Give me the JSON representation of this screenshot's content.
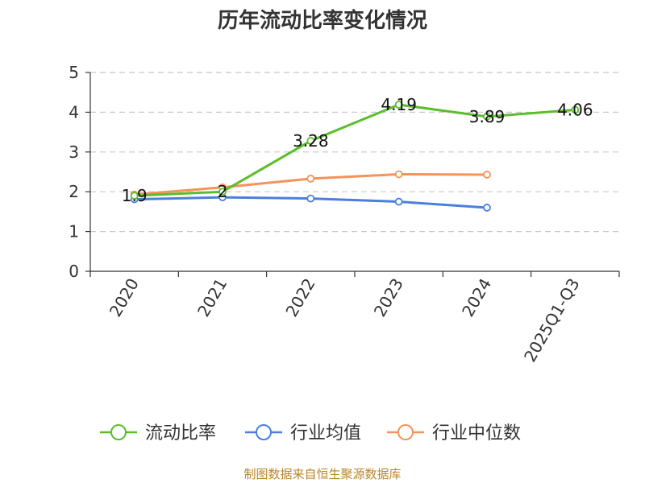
{
  "chart_data": {
    "type": "line",
    "title": "历年流动比率变化情况",
    "categories": [
      "2020",
      "2021",
      "2022",
      "2023",
      "2024",
      "2025Q1-Q3"
    ],
    "ylim": [
      0,
      5
    ],
    "yticks": [
      "0",
      "1",
      "2",
      "3",
      "4",
      "5"
    ],
    "grid": true,
    "legend_position": "bottom",
    "series": [
      {
        "name": "流动比率",
        "color": "#5bbd2b",
        "values": [
          1.9,
          2,
          3.28,
          4.19,
          3.89,
          4.06
        ],
        "labels": [
          "1.9",
          "2",
          "3.28",
          "4.19",
          "3.89",
          "4.06"
        ]
      },
      {
        "name": "行业均值",
        "color": "#4a7fdc",
        "values": [
          1.81,
          1.86,
          1.83,
          1.75,
          1.6,
          null
        ]
      },
      {
        "name": "行业中位数",
        "color": "#f4935a",
        "values": [
          1.93,
          2.11,
          2.33,
          2.44,
          2.43,
          null
        ]
      }
    ],
    "source": "制图数据来自恒生聚源数据库"
  }
}
